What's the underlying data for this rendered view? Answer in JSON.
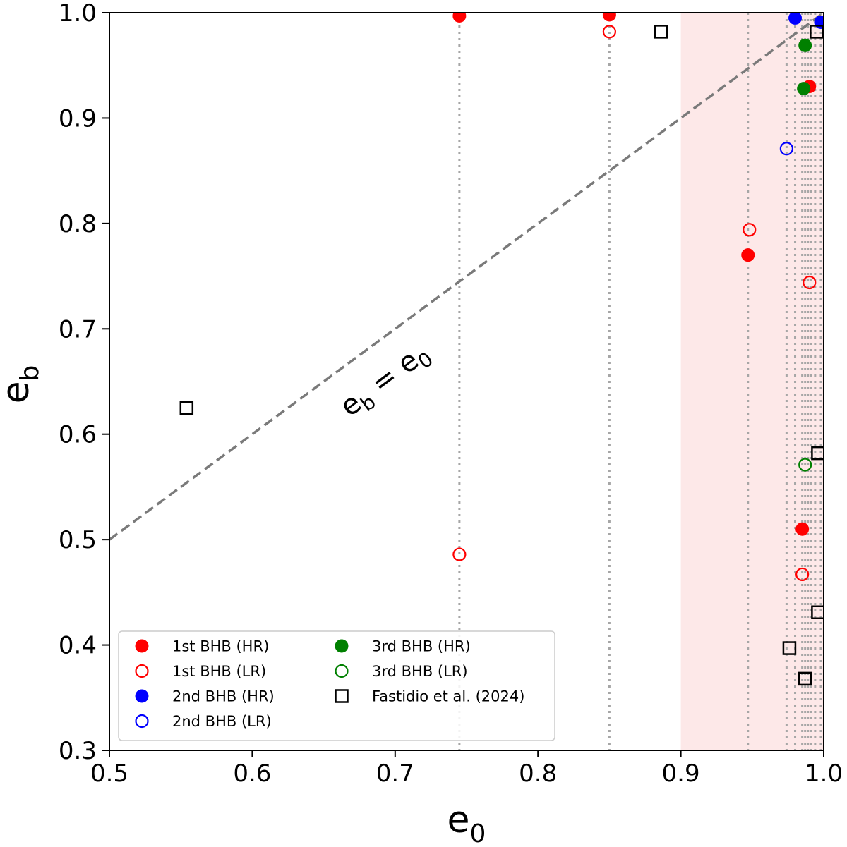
{
  "chart_data": {
    "type": "scatter",
    "xlabel_base": "e",
    "xlabel_sub": "0",
    "ylabel_base": "e",
    "ylabel_sub": "b",
    "xlim": [
      0.5,
      1.0
    ],
    "ylim": [
      0.3,
      1.0
    ],
    "xticks": [
      "0.5",
      "0.6",
      "0.7",
      "0.8",
      "0.9",
      "1.0"
    ],
    "yticks": [
      "0.3",
      "0.4",
      "0.5",
      "0.6",
      "0.7",
      "0.8",
      "0.9",
      "1.0"
    ],
    "shaded_region": {
      "x_from": 0.9,
      "x_to": 1.0,
      "color": "#fde8e8"
    },
    "reference_line": {
      "label_lhs": "e",
      "label_lhs_sub": "b",
      "label_eq": " = ",
      "label_rhs": "e",
      "label_rhs_sub": "0",
      "x": [
        0.5,
        1.0
      ],
      "y": [
        0.5,
        1.0
      ]
    },
    "vertical_lines_x": [
      0.745,
      0.85,
      0.947,
      0.974,
      0.98,
      0.985,
      0.987,
      0.989,
      0.991,
      0.994,
      0.998
    ],
    "series": [
      {
        "name": "1st BHB (HR)",
        "color": "#ff0000",
        "filled": true,
        "marker": "circle",
        "points": [
          [
            0.745,
            0.997
          ],
          [
            0.85,
            0.998
          ],
          [
            0.947,
            0.77
          ],
          [
            0.99,
            0.93
          ],
          [
            0.985,
            0.51
          ]
        ]
      },
      {
        "name": "1st BHB (LR)",
        "color": "#ff0000",
        "filled": false,
        "marker": "circle",
        "points": [
          [
            0.745,
            0.486
          ],
          [
            0.85,
            0.982
          ],
          [
            0.948,
            0.794
          ],
          [
            0.99,
            0.744
          ],
          [
            0.985,
            0.467
          ]
        ]
      },
      {
        "name": "2nd BHB (HR)",
        "color": "#0000ff",
        "filled": true,
        "marker": "circle",
        "points": [
          [
            0.98,
            0.995
          ],
          [
            0.998,
            0.991
          ]
        ]
      },
      {
        "name": "2nd BHB (LR)",
        "color": "#0000ff",
        "filled": false,
        "marker": "circle",
        "points": [
          [
            0.974,
            0.871
          ]
        ]
      },
      {
        "name": "3rd BHB (HR)",
        "color": "#008000",
        "filled": true,
        "marker": "circle",
        "points": [
          [
            0.987,
            0.969
          ],
          [
            0.986,
            0.928
          ]
        ]
      },
      {
        "name": "3rd BHB (LR)",
        "color": "#008000",
        "filled": false,
        "marker": "circle",
        "points": [
          [
            0.987,
            0.571
          ]
        ]
      },
      {
        "name": "Fastidio et al. (2024)",
        "color": "#000000",
        "filled": false,
        "marker": "square",
        "points": [
          [
            0.554,
            0.625
          ],
          [
            0.886,
            0.982
          ],
          [
            0.995,
            0.982
          ],
          [
            0.996,
            0.582
          ],
          [
            0.996,
            0.431
          ],
          [
            0.976,
            0.397
          ],
          [
            0.987,
            0.368
          ]
        ]
      }
    ],
    "legend_position": "bottom-left"
  }
}
